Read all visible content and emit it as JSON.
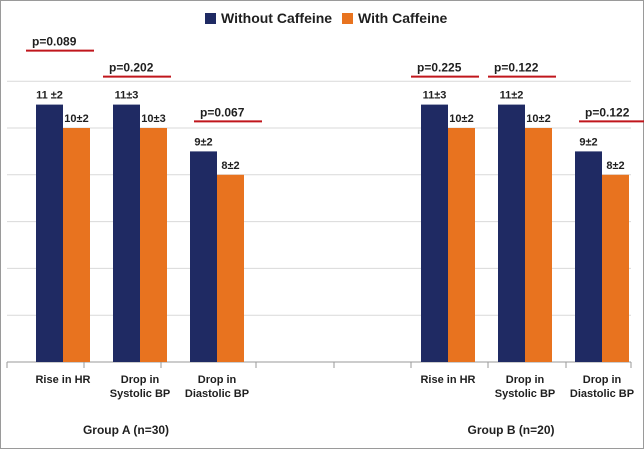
{
  "chart_data": {
    "type": "bar",
    "legend": {
      "position": "top-center",
      "entries": [
        {
          "name": "Without Caffeine",
          "color": "#1f2a63"
        },
        {
          "name": "With Caffeine",
          "color": "#e8731f"
        }
      ]
    },
    "ylim": [
      0,
      13
    ],
    "grid": true,
    "groups": [
      {
        "label": "Group A (n=30)",
        "categories": [
          {
            "label": [
              "Rise in HR"
            ],
            "values": [
              11,
              10
            ],
            "data_labels": [
              "11 ±2",
              "10±2"
            ],
            "p_value": "p=0.089"
          },
          {
            "label": [
              "Drop in",
              "Systolic BP"
            ],
            "values": [
              11,
              10
            ],
            "data_labels": [
              "11±3",
              "10±3"
            ],
            "p_value": "p=0.202"
          },
          {
            "label": [
              "Drop in",
              "Diastolic BP"
            ],
            "values": [
              9,
              8
            ],
            "data_labels": [
              "9±2",
              "8±2"
            ],
            "p_value": "p=0.067"
          }
        ]
      },
      {
        "label": "Group B (n=20)",
        "categories": [
          {
            "label": [
              "Rise in HR"
            ],
            "values": [
              11,
              10
            ],
            "data_labels": [
              "11±3",
              "10±2"
            ],
            "p_value": "p=0.225"
          },
          {
            "label": [
              "Drop in",
              "Systolic BP"
            ],
            "values": [
              11,
              10
            ],
            "data_labels": [
              "11±2",
              "10±2"
            ],
            "p_value": "p=0.122"
          },
          {
            "label": [
              "Drop in",
              "Diastolic BP"
            ],
            "values": [
              9,
              8
            ],
            "data_labels": [
              "9±2",
              "8±2"
            ],
            "p_value": "p=0.122"
          }
        ]
      }
    ],
    "colors": {
      "p_line": "#c0161c",
      "grid": "#d9d9d9",
      "axis": "#9a9a9a"
    }
  }
}
